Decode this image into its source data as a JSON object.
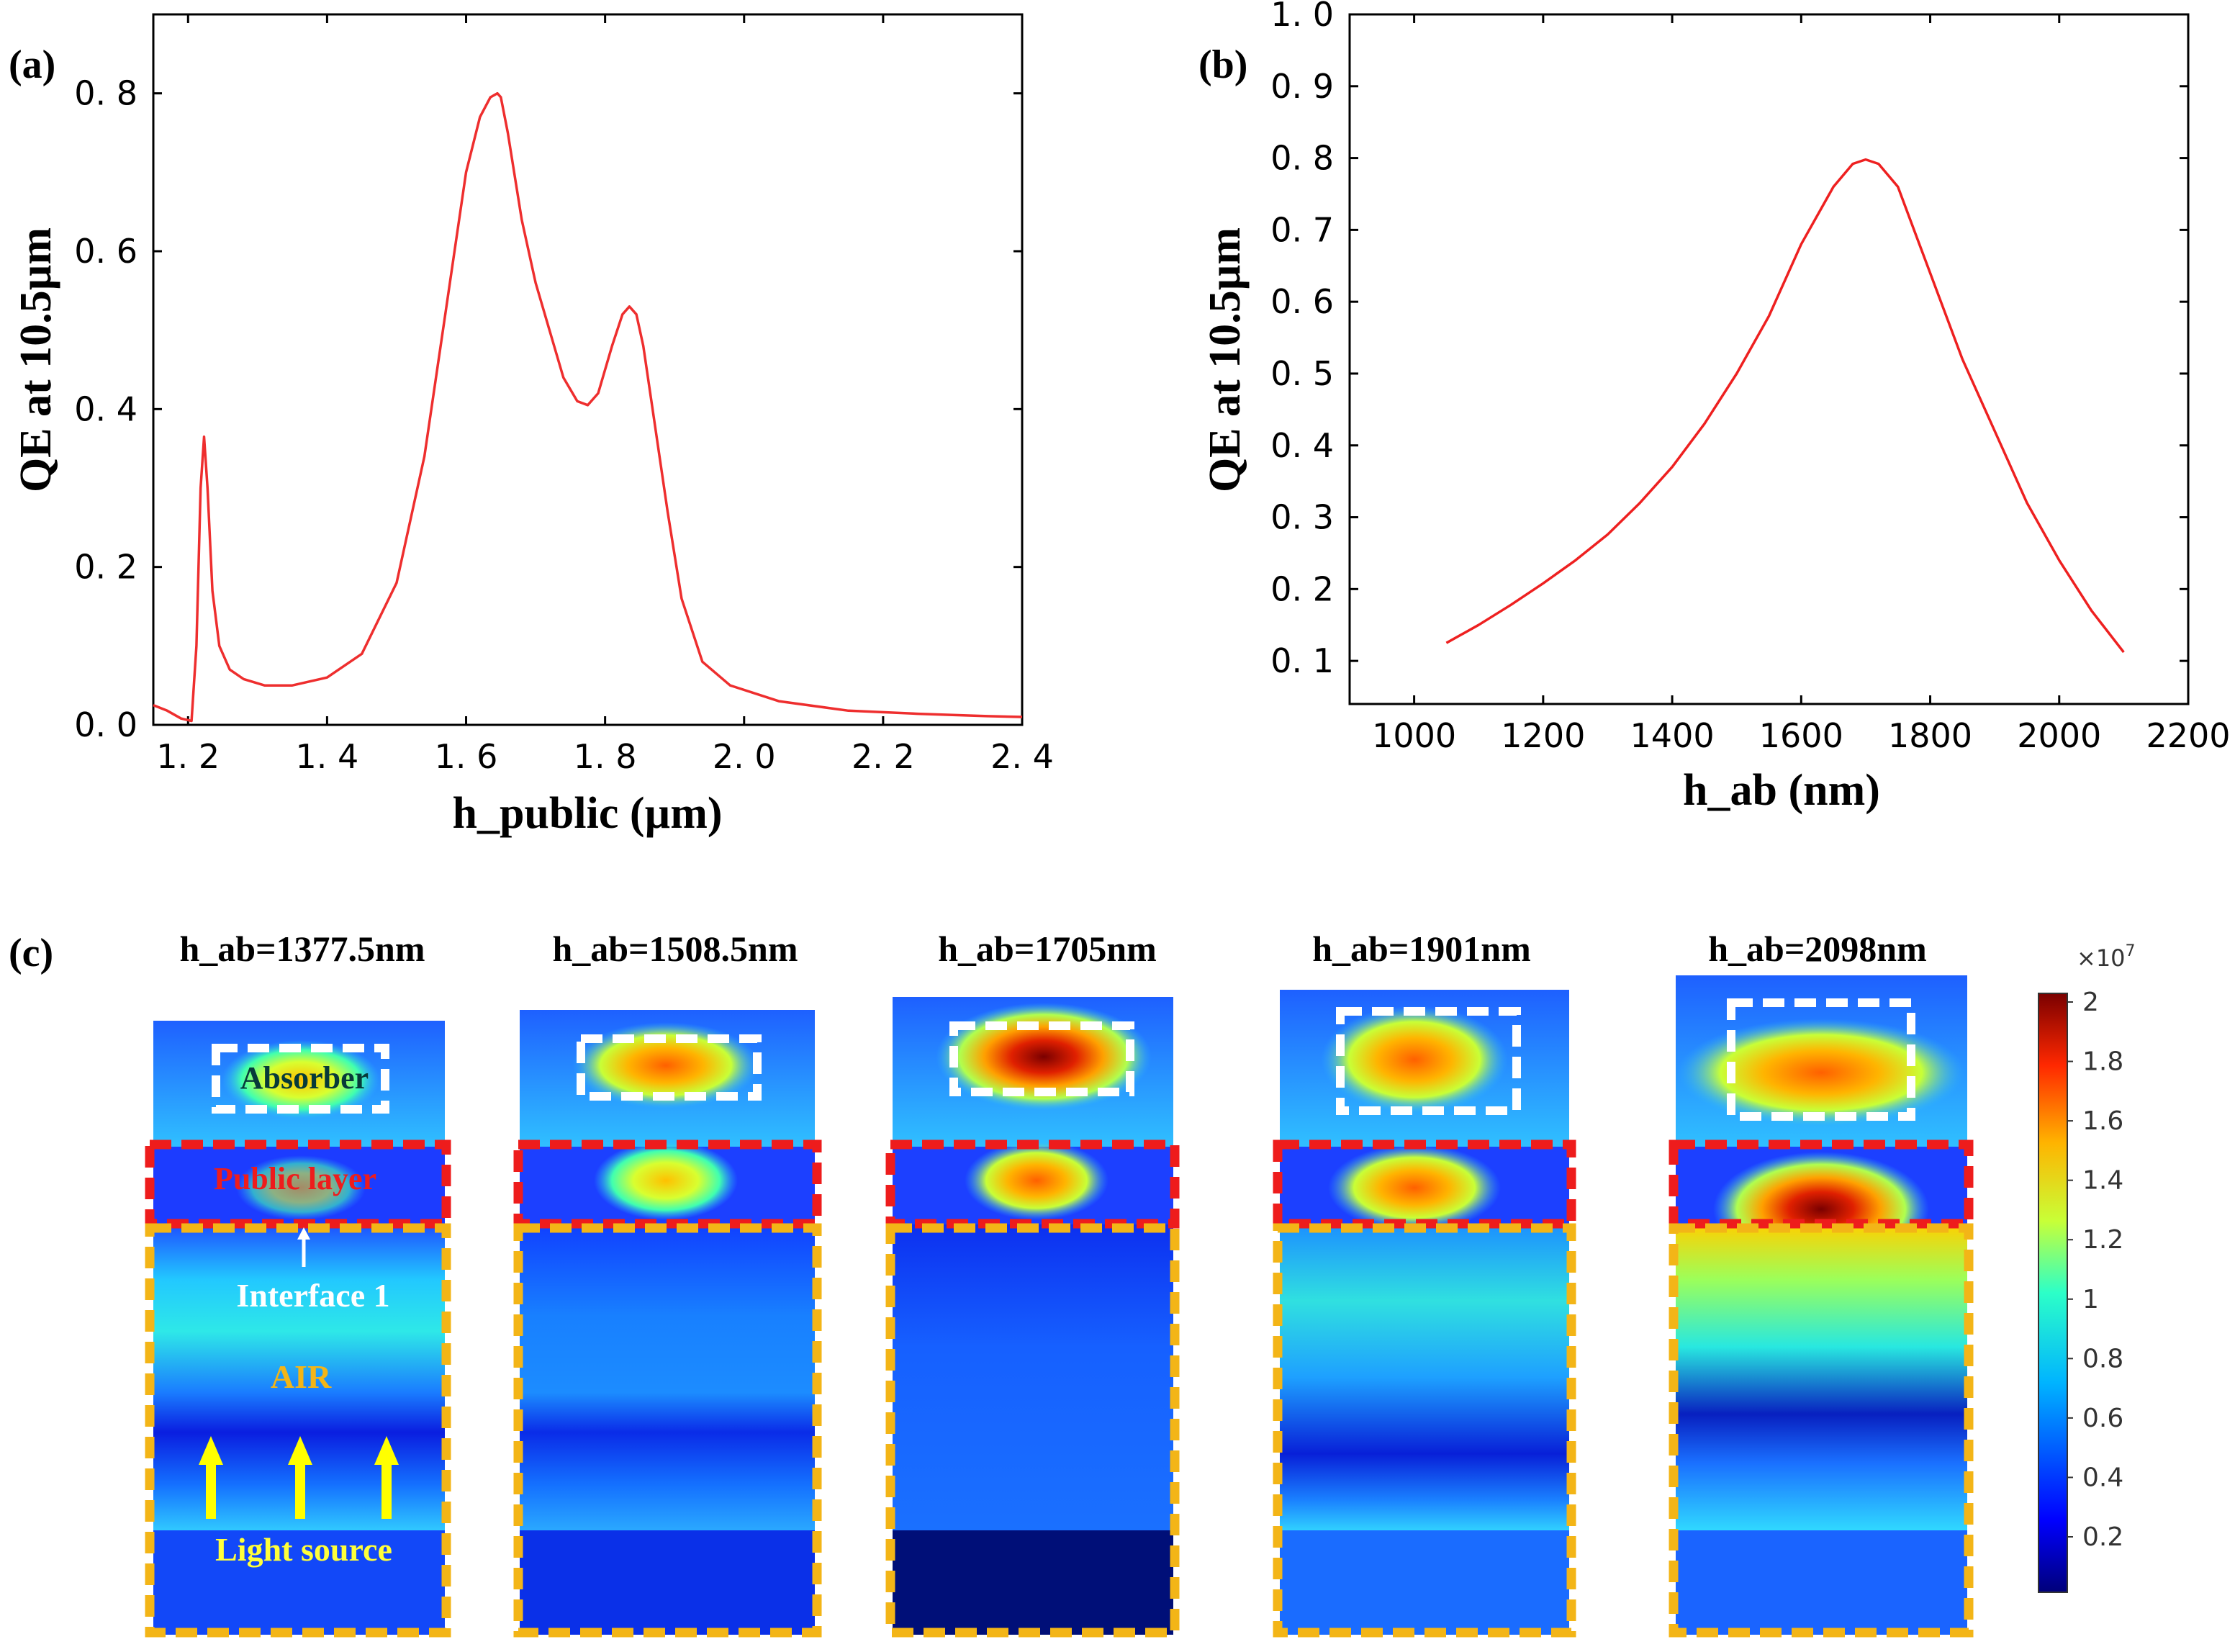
{
  "figure": {
    "panel_labels": [
      "(a)",
      "(b)",
      "(c)"
    ]
  },
  "chart_data": [
    {
      "type": "line",
      "panel": "(a)",
      "xlabel": "h_public (µm)",
      "ylabel": "QE at 10.5µm",
      "xlim": [
        1.15,
        2.4
      ],
      "ylim": [
        0,
        0.9
      ],
      "xticks": [
        1.2,
        1.4,
        1.6,
        1.8,
        2.0,
        2.2,
        2.4
      ],
      "xtick_labels": [
        "1. 2",
        "1. 4",
        "1. 6",
        "1. 8",
        "2. 0",
        "2. 2",
        "2. 4"
      ],
      "yticks": [
        0,
        0.2,
        0.4,
        0.6,
        0.8
      ],
      "ytick_labels": [
        "0. 0",
        "0. 2",
        "0. 4",
        "0. 6",
        "0. 8"
      ],
      "color": "#ee2e2e",
      "series": [
        {
          "name": "QE",
          "x": [
            1.15,
            1.17,
            1.19,
            1.205,
            1.212,
            1.218,
            1.223,
            1.228,
            1.235,
            1.245,
            1.26,
            1.28,
            1.31,
            1.35,
            1.4,
            1.45,
            1.5,
            1.54,
            1.57,
            1.6,
            1.62,
            1.635,
            1.645,
            1.65,
            1.66,
            1.68,
            1.7,
            1.72,
            1.74,
            1.76,
            1.775,
            1.79,
            1.81,
            1.825,
            1.835,
            1.845,
            1.855,
            1.87,
            1.89,
            1.91,
            1.94,
            1.98,
            2.05,
            2.15,
            2.25,
            2.35,
            2.4
          ],
          "y": [
            0.025,
            0.018,
            0.008,
            0.005,
            0.1,
            0.3,
            0.365,
            0.3,
            0.17,
            0.1,
            0.07,
            0.058,
            0.05,
            0.05,
            0.06,
            0.09,
            0.18,
            0.34,
            0.52,
            0.7,
            0.77,
            0.795,
            0.8,
            0.795,
            0.75,
            0.64,
            0.56,
            0.5,
            0.44,
            0.41,
            0.405,
            0.42,
            0.48,
            0.52,
            0.53,
            0.52,
            0.48,
            0.39,
            0.27,
            0.16,
            0.08,
            0.05,
            0.03,
            0.018,
            0.014,
            0.011,
            0.01
          ]
        }
      ]
    },
    {
      "type": "line",
      "panel": "(b)",
      "xlabel": "h_ab (nm)",
      "ylabel": "QE at 10.5µm",
      "xlim": [
        900,
        2200
      ],
      "ylim": [
        0.04,
        1.0
      ],
      "xticks": [
        1000,
        1200,
        1400,
        1600,
        1800,
        2000,
        2200
      ],
      "xtick_labels": [
        "1000",
        "1200",
        "1400",
        "1600",
        "1800",
        "2000",
        "2200"
      ],
      "yticks": [
        0.1,
        0.2,
        0.3,
        0.4,
        0.5,
        0.6,
        0.7,
        0.8,
        0.9,
        1.0
      ],
      "ytick_labels": [
        "0. 1",
        "0. 2",
        "0. 3",
        "0. 4",
        "0. 5",
        "0. 6",
        "0. 7",
        "0. 8",
        "0. 9",
        "1. 0"
      ],
      "color": "#ee2020",
      "series": [
        {
          "name": "QE",
          "x": [
            1050,
            1100,
            1150,
            1200,
            1250,
            1300,
            1350,
            1400,
            1450,
            1500,
            1550,
            1600,
            1650,
            1680,
            1700,
            1720,
            1750,
            1800,
            1850,
            1900,
            1950,
            2000,
            2050,
            2100
          ],
          "y": [
            0.125,
            0.15,
            0.178,
            0.208,
            0.24,
            0.276,
            0.32,
            0.37,
            0.43,
            0.5,
            0.58,
            0.68,
            0.76,
            0.792,
            0.798,
            0.792,
            0.76,
            0.64,
            0.52,
            0.42,
            0.32,
            0.24,
            0.17,
            0.112
          ]
        }
      ]
    }
  ],
  "field_maps": {
    "titles": [
      "h_ab=1377.5nm",
      "h_ab=1508.5nm",
      "h_ab=1705nm",
      "h_ab=1901nm",
      "h_ab=2098nm"
    ],
    "region_labels": {
      "absorber": "Absorber",
      "public_layer": "Public layer",
      "interface": "Interface 1",
      "air": "AIR",
      "light_source": "Light source"
    },
    "colorbar": {
      "exponent": "×10",
      "exponent_power": "7",
      "ticks": [
        "2",
        "1.8",
        "1.6",
        "1.4",
        "1.2",
        "1",
        "0.8",
        "0.6",
        "0.4",
        "0.2"
      ]
    }
  }
}
